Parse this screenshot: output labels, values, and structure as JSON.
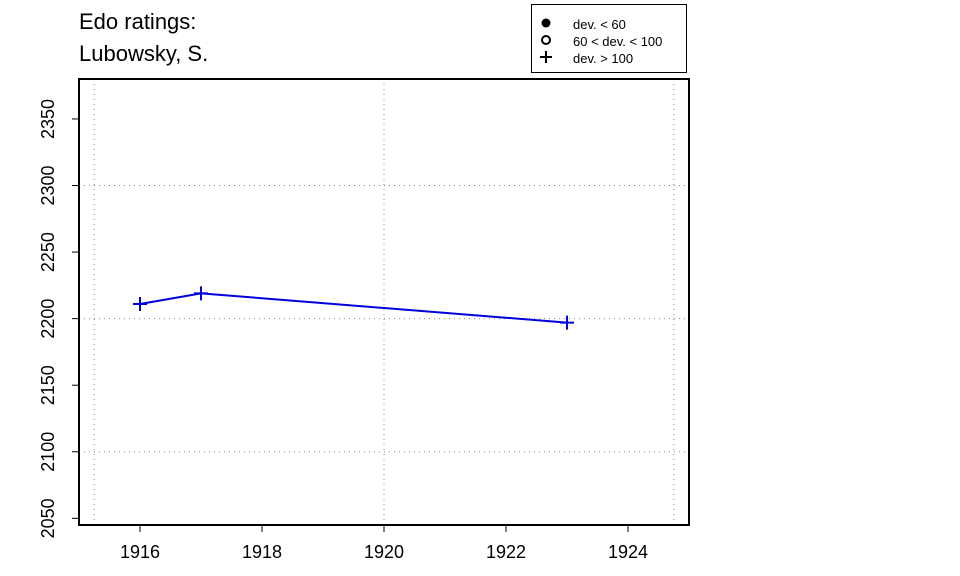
{
  "header": {
    "title_line1": "Edo ratings:",
    "title_line2": "Lubowsky, S."
  },
  "legend": {
    "items": [
      {
        "label": "dev. < 60",
        "symbol": "filled-circle"
      },
      {
        "label": "60 < dev. < 100",
        "symbol": "open-circle"
      },
      {
        "label": "dev. > 100",
        "symbol": "plus"
      }
    ]
  },
  "chart_data": {
    "type": "line",
    "title": "Edo ratings: Lubowsky, S.",
    "xlabel": "",
    "ylabel": "",
    "xlim": [
      1915,
      1925
    ],
    "ylim": [
      2045,
      2380
    ],
    "x_ticks": [
      1916,
      1918,
      1920,
      1922,
      1924
    ],
    "y_ticks": [
      2050,
      2100,
      2150,
      2200,
      2250,
      2300,
      2350
    ],
    "grid": true,
    "grid_style": "dotted",
    "legend_position": "top-right",
    "series": [
      {
        "color": "#0000dd",
        "marker": "plus",
        "points": [
          {
            "x": 1916,
            "y": 2211
          },
          {
            "x": 1917,
            "y": 2219
          },
          {
            "x": 1923,
            "y": 2197
          }
        ]
      }
    ]
  }
}
